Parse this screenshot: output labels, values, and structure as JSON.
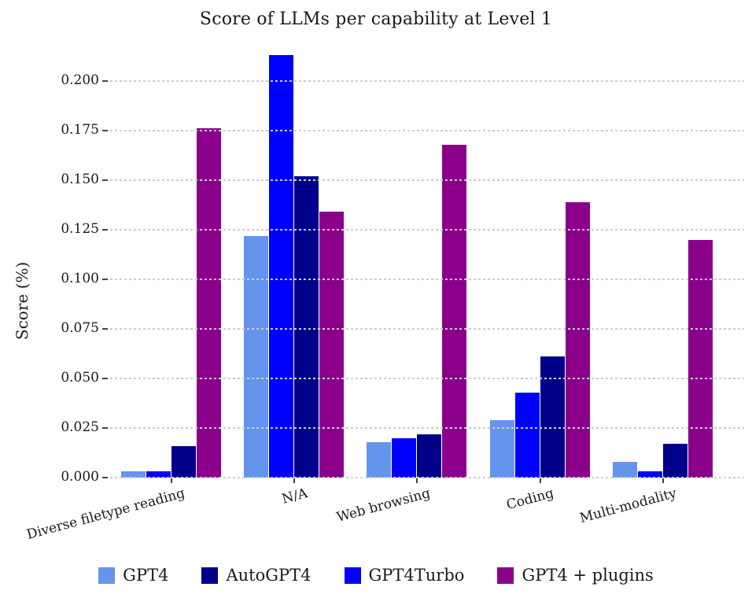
{
  "chart_data": {
    "type": "bar",
    "title": "Score of LLMs per capability at Level 1",
    "ylabel": "Score (%)",
    "categories": [
      "Diverse filetype reading",
      "N/A",
      "Web browsing",
      "Coding",
      "Multi-modality"
    ],
    "series": [
      {
        "name": "GPT4",
        "color": "#6495ED",
        "values": [
          0.003,
          0.122,
          0.018,
          0.029,
          0.008
        ]
      },
      {
        "name": "GPT4Turbo",
        "color": "#0000FF",
        "values": [
          0.003,
          0.213,
          0.02,
          0.043,
          0.003
        ]
      },
      {
        "name": "AutoGPT4",
        "color": "#00008B",
        "values": [
          0.016,
          0.152,
          0.022,
          0.061,
          0.017
        ]
      },
      {
        "name": "GPT4 + plugins",
        "color": "#8B008B",
        "values": [
          0.176,
          0.134,
          0.168,
          0.139,
          0.12
        ]
      }
    ],
    "bar_group_order": [
      "GPT4",
      "GPT4Turbo",
      "AutoGPT4",
      "GPT4 + plugins"
    ],
    "legend": [
      "GPT4",
      "AutoGPT4",
      "GPT4Turbo",
      "GPT4 + plugins"
    ],
    "legend_position": "bottom",
    "yticks": [
      "0.000",
      "0.025",
      "0.050",
      "0.075",
      "0.100",
      "0.125",
      "0.150",
      "0.175",
      "0.200"
    ],
    "ylim": [
      0,
      0.215
    ],
    "grid": "horizontal-dashed"
  }
}
